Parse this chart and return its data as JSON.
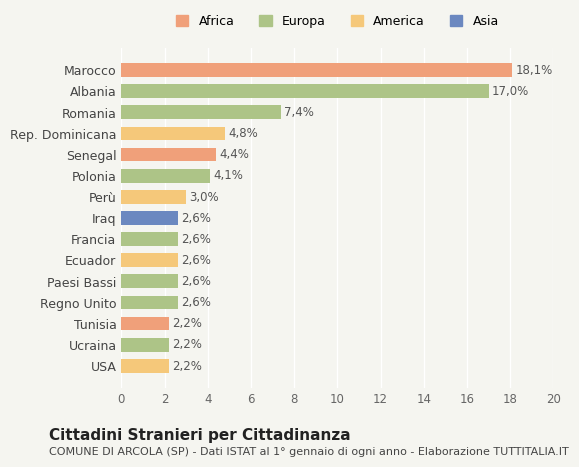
{
  "categories": [
    "USA",
    "Ucraina",
    "Tunisia",
    "Regno Unito",
    "Paesi Bassi",
    "Ecuador",
    "Francia",
    "Iraq",
    "Perù",
    "Polonia",
    "Senegal",
    "Rep. Dominicana",
    "Romania",
    "Albania",
    "Marocco"
  ],
  "values": [
    2.2,
    2.2,
    2.2,
    2.6,
    2.6,
    2.6,
    2.6,
    2.6,
    3.0,
    4.1,
    4.4,
    4.8,
    7.4,
    17.0,
    18.1
  ],
  "colors": [
    "#f5c87a",
    "#adc487",
    "#f0a07a",
    "#adc487",
    "#adc487",
    "#f5c87a",
    "#adc487",
    "#6b88c0",
    "#f5c87a",
    "#adc487",
    "#f0a07a",
    "#f5c87a",
    "#adc487",
    "#adc487",
    "#f0a07a"
  ],
  "labels": [
    "2,2%",
    "2,2%",
    "2,2%",
    "2,6%",
    "2,6%",
    "2,6%",
    "2,6%",
    "2,6%",
    "3,0%",
    "4,1%",
    "4,4%",
    "4,8%",
    "7,4%",
    "17,0%",
    "18,1%"
  ],
  "xlim": [
    0,
    20
  ],
  "xticks": [
    0,
    2,
    4,
    6,
    8,
    10,
    12,
    14,
    16,
    18,
    20
  ],
  "legend_items": [
    {
      "label": "Africa",
      "color": "#f0a07a"
    },
    {
      "label": "Europa",
      "color": "#adc487"
    },
    {
      "label": "America",
      "color": "#f5c87a"
    },
    {
      "label": "Asia",
      "color": "#6b88c0"
    }
  ],
  "title": "Cittadini Stranieri per Cittadinanza",
  "subtitle": "COMUNE DI ARCOLA (SP) - Dati ISTAT al 1° gennaio di ogni anno - Elaborazione TUTTITALIA.IT",
  "bg_color": "#f5f5f0",
  "bar_height": 0.65,
  "label_fontsize": 8.5,
  "title_fontsize": 11,
  "subtitle_fontsize": 8
}
